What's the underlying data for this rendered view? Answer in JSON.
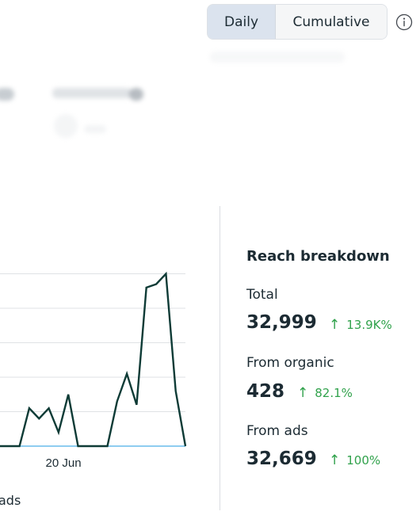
{
  "view_toggle": {
    "options": [
      "Daily",
      "Cumulative"
    ],
    "selected": "Daily"
  },
  "icons": {
    "info": "info-icon",
    "up_arrow": "arrow-up-icon"
  },
  "chart_data": {
    "type": "line",
    "x": [
      1,
      2,
      3,
      4,
      5,
      6,
      7,
      8,
      9,
      10,
      11,
      12,
      13,
      14,
      15,
      16,
      17,
      18,
      19,
      20
    ],
    "xtick_labels": [
      {
        "at": 7.5,
        "label": "20 Jun"
      }
    ],
    "series": [
      {
        "color": "#0e3b36",
        "values": [
          0,
          0,
          0,
          11,
          8,
          11,
          4,
          15,
          0,
          0,
          0,
          0,
          13,
          21,
          12,
          46,
          47,
          50,
          16,
          0
        ]
      },
      {
        "color": "#8ecdf0",
        "values": [
          0,
          0,
          0,
          0,
          0,
          0,
          0,
          0,
          0,
          0,
          0,
          0,
          0,
          0,
          0,
          0,
          0,
          0,
          0,
          0
        ]
      }
    ],
    "ylim": [
      0,
      60
    ],
    "grid": true,
    "legend_partial_text": "ads"
  },
  "reach_breakdown": {
    "title": "Reach breakdown",
    "items": [
      {
        "label": "Total",
        "value": "32,999",
        "change": "13.9K%"
      },
      {
        "label": "From organic",
        "value": "428",
        "change": "82.1%"
      },
      {
        "label": "From ads",
        "value": "32,669",
        "change": "100%"
      }
    ]
  },
  "colors": {
    "positive": "#31a24c",
    "line_primary": "#0e3b36",
    "line_secondary": "#8ecdf0",
    "toggle_selected": "#dbe3ee"
  }
}
